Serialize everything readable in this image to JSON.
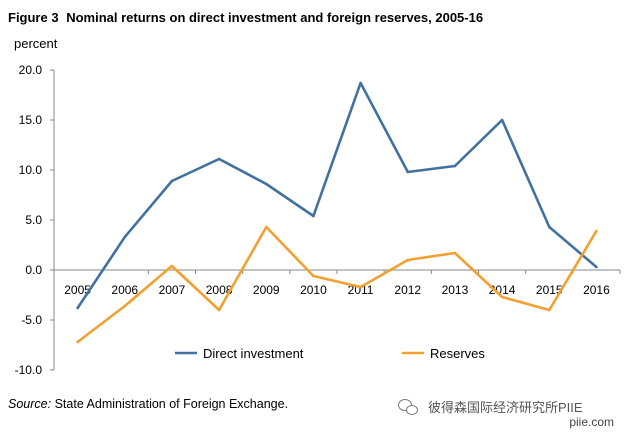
{
  "figure": {
    "number": "Figure 3",
    "title": "Nominal returns on direct investment and foreign reserves, 2005-16"
  },
  "chart_data": {
    "type": "line",
    "title": "Nominal returns on direct investment and foreign reserves, 2005-16",
    "ylabel": "percent",
    "xlabel": "",
    "ylim": [
      -10,
      20
    ],
    "yticks": [
      -10,
      -5,
      0,
      5,
      10,
      15,
      20
    ],
    "ytick_labels": [
      "-10.0",
      "-5.0",
      "0.0",
      "5.0",
      "10.0",
      "15.0",
      "20.0"
    ],
    "categories": [
      "2005",
      "2006",
      "2007",
      "2008",
      "2009",
      "2010",
      "2011",
      "2012",
      "2013",
      "2014",
      "2015",
      "2016"
    ],
    "grid": false,
    "legend": "bottom",
    "series": [
      {
        "name": "Direct investment",
        "color": "#41729F",
        "values": [
          -3.8,
          3.3,
          8.9,
          11.1,
          8.6,
          5.4,
          18.7,
          9.8,
          10.4,
          15.0,
          4.3,
          0.3
        ]
      },
      {
        "name": "Reserves",
        "color": "#F2A030",
        "values": [
          -7.2,
          -3.6,
          0.4,
          -4.0,
          4.3,
          -0.6,
          -1.7,
          1.0,
          1.7,
          -2.7,
          -4.0,
          3.9
        ]
      }
    ]
  },
  "footer": {
    "source_label": "Source:",
    "source_text": "State Administration of Foreign Exchange.",
    "watermark": "彼得森国际经济研究所PIIE",
    "site": "piie.com"
  }
}
